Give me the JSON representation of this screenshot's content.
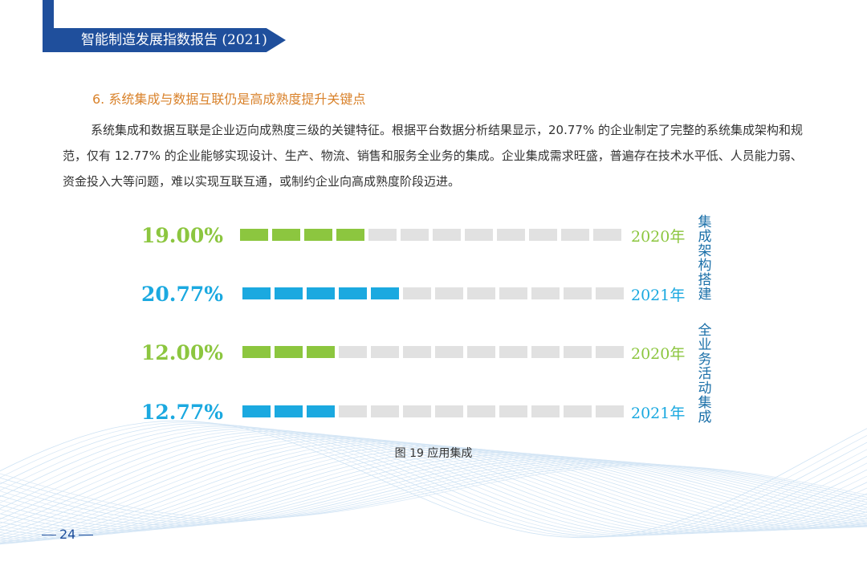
{
  "header": {
    "title": "智能制造发展指数报告 (2021)"
  },
  "section": {
    "title": "6. 系统集成与数据互联仍是高成熟度提升关键点",
    "paragraph": "系统集成和数据互联是企业迈向成熟度三级的关键特征。根据平台数据分析结果显示，20.77% 的企业制定了完整的系统集成架构和规范，仅有 12.77% 的企业能够实现设计、生产、物流、销售和服务全业务的集成。企业集成需求旺盛，普遍存在技术水平低、人员能力弱、资金投入大等问题，难以实现互联互通，或制约企业向高成熟度阶段迈进。"
  },
  "colors": {
    "green": "#8cc63f",
    "blue": "#1ba9e0",
    "gray": "#e1e1e1",
    "accent": "#d9822b",
    "navy": "#1f4f9c"
  },
  "chart_data": {
    "type": "bar",
    "segments_total": 12,
    "groups": [
      {
        "label": "集成架构搭建",
        "rows": [
          {
            "value_label": "19.00%",
            "year": "2020年",
            "value": 19.0,
            "filled": 4,
            "color": "#8cc63f"
          },
          {
            "value_label": "20.77%",
            "year": "2021年",
            "value": 20.77,
            "filled": 5,
            "color": "#1ba9e0"
          }
        ]
      },
      {
        "label": "全业务活动集成",
        "rows": [
          {
            "value_label": "12.00%",
            "year": "2020年",
            "value": 12.0,
            "filled": 3,
            "color": "#8cc63f"
          },
          {
            "value_label": "12.77%",
            "year": "2021年",
            "value": 12.77,
            "filled": 3,
            "color": "#1ba9e0"
          }
        ]
      }
    ]
  },
  "caption": "图 19  应用集成",
  "page_number": "24"
}
